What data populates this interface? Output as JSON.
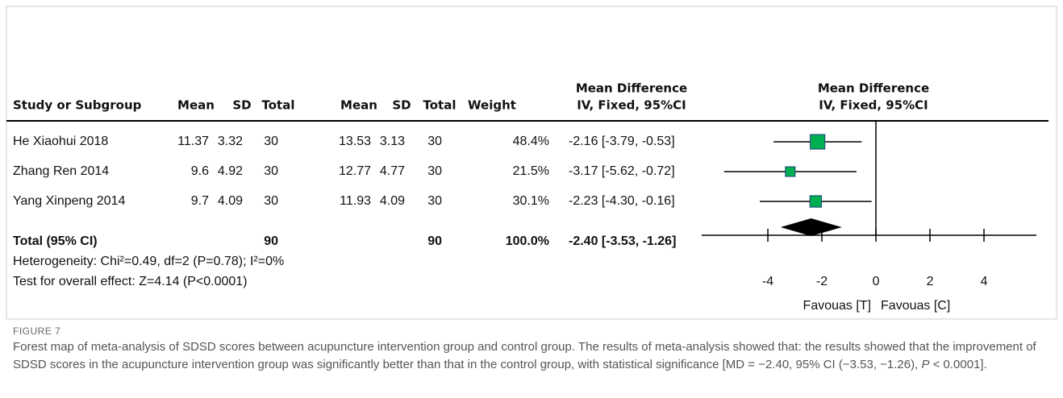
{
  "header": {
    "ci_group": "Mean Difference",
    "plot_group": "Mean Difference",
    "plot_method": "IV, Fixed, 95%CI",
    "columns": [
      "Study or Subgroup",
      "Mean",
      "SD",
      "Total",
      "Mean",
      "SD",
      "Total",
      "Weight",
      "IV, Fixed, 95%CI"
    ]
  },
  "rows": [
    [
      "He Xiaohui 2018",
      "11.37",
      "3.32",
      "30",
      "13.53",
      "3.13",
      "30",
      "48.4%",
      "-2.16 [-3.79, -0.53]"
    ],
    [
      "Zhang Ren 2014",
      "9.6",
      "4.92",
      "30",
      "12.77",
      "4.77",
      "30",
      "21.5%",
      "-3.17 [-5.62, -0.72]"
    ],
    [
      "Yang Xinpeng 2014",
      "9.7",
      "4.09",
      "30",
      "11.93",
      "4.09",
      "30",
      "30.1%",
      "-2.23 [-4.30, -0.16]"
    ]
  ],
  "total": {
    "name": "Total (95% CI)",
    "total1": "90",
    "total2": "90",
    "weight": "100.0%",
    "ci": "-2.40 [-3.53, -1.26]"
  },
  "heterogeneity": "Heterogeneity: Chi²=0.49, df=2 (P=0.78); I²=0%",
  "overall_effect": "Test for overall effect: Z=4.14 (P<0.0001)",
  "chart_data": {
    "type": "forest",
    "xlim": [
      -6.45,
      5.94
    ],
    "xticks": [
      -4,
      -2,
      0,
      2,
      4
    ],
    "x_labels": [
      "Favouas [T]",
      "Favouas [C]"
    ],
    "studies": [
      {
        "md": -2.16,
        "lo": -3.79,
        "hi": -0.53,
        "weight": 48.4
      },
      {
        "md": -3.17,
        "lo": -5.62,
        "hi": -0.72,
        "weight": 21.5
      },
      {
        "md": -2.23,
        "lo": -4.3,
        "hi": -0.16,
        "weight": 30.1
      }
    ],
    "pooled": {
      "md": -2.4,
      "lo": -3.53,
      "hi": -1.26
    },
    "square_color": "#00b050",
    "diamond_color": "#000000"
  },
  "figure_label": "FIGURE 7",
  "caption": [
    "Forest map of meta-analysis of SDSD scores between acupuncture intervention group and control group. The results of meta-analysis showed that: the results showed that the improvement of SDSD scores in the acupuncture intervention group was significantly better than that in the control group, with statistical significance [MD = −2.40, 95% CI (−3.53, −1.26), ",
    "P",
    " < 0.0001]."
  ]
}
